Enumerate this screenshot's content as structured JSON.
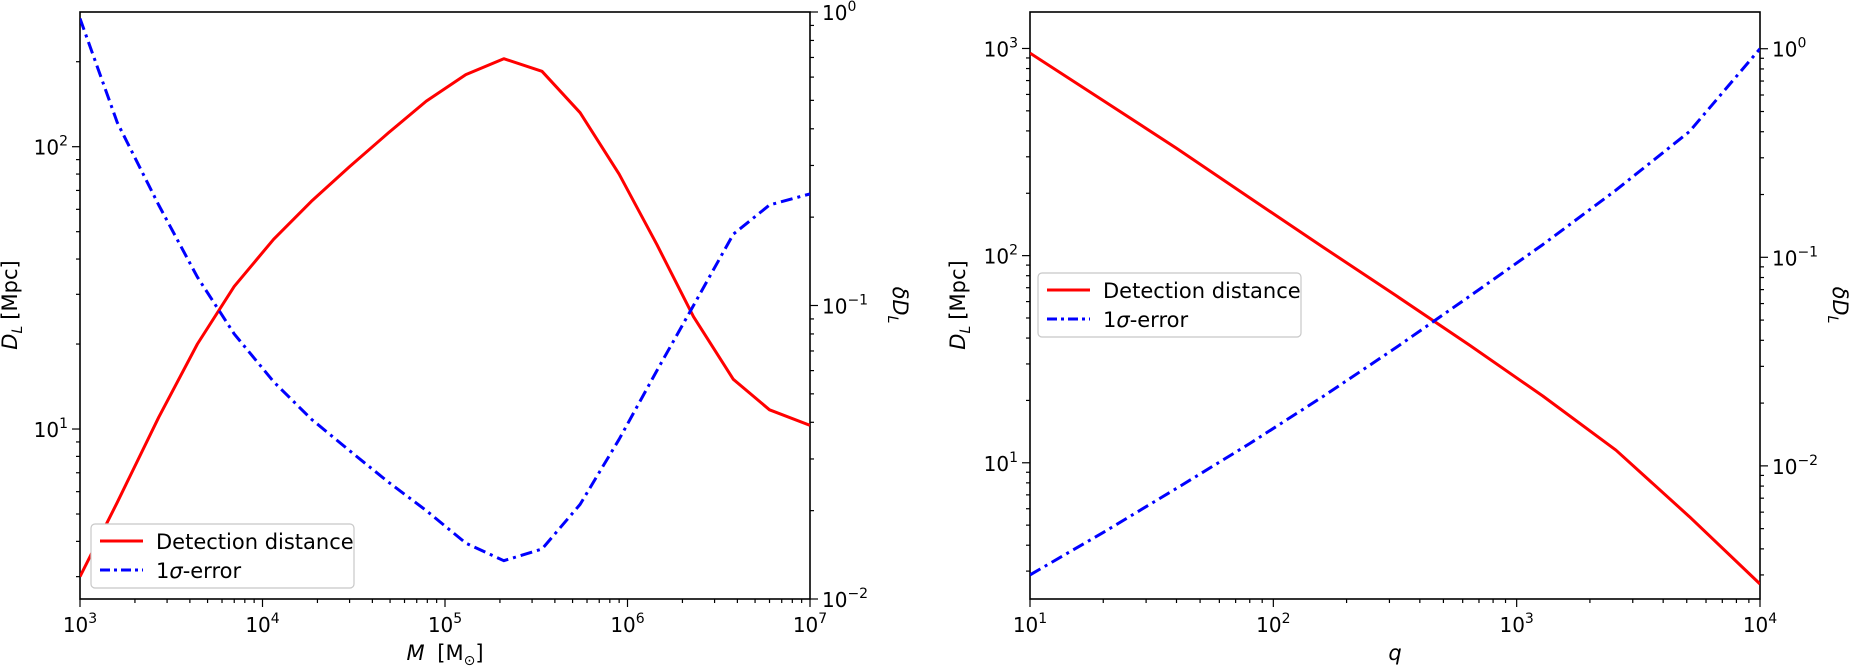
{
  "chart_data": [
    {
      "type": "line",
      "xlabel": "M [M⊙]",
      "ylabel_left": "D_L [Mpc]",
      "ylabel_right": "δD_L",
      "xscale": "log",
      "yscale_left": "log",
      "yscale_right": "log",
      "xlim": [
        1000,
        10000000
      ],
      "ylim_left": [
        2.5,
        300
      ],
      "ylim_right": [
        0.01,
        1
      ],
      "x_tick_labels": [
        "10^3",
        "10^4",
        "10^5",
        "10^6",
        "10^7"
      ],
      "y_left_tick_labels": [
        "10^1",
        "10^2"
      ],
      "y_right_tick_labels": [
        "10^-2",
        "10^-1",
        "10^0"
      ],
      "legend": "lower-left",
      "series": [
        {
          "name": "Detection distance",
          "axis": "left",
          "color": "#ff0000",
          "style": "solid",
          "x": [
            1000,
            1600,
            2700,
            4400,
            7000,
            11500,
            18500,
            30000,
            49000,
            79000,
            130000,
            210000,
            340000,
            550000,
            900000,
            1450000,
            2300000,
            3800000,
            6000000,
            10000000
          ],
          "y": [
            3,
            5.5,
            11,
            20,
            32,
            47,
            64,
            85,
            112,
            145,
            180,
            205,
            185,
            132,
            80,
            45,
            25,
            15,
            11.7,
            10.3
          ]
        },
        {
          "name": "1σ-error",
          "axis": "right",
          "color": "#0000ff",
          "style": "dashdot",
          "x": [
            1000,
            1600,
            2700,
            4400,
            7000,
            11500,
            18500,
            30000,
            49000,
            79000,
            130000,
            210000,
            340000,
            550000,
            900000,
            1450000,
            2300000,
            3800000,
            6000000,
            10000000
          ],
          "y": [
            0.95,
            0.42,
            0.22,
            0.125,
            0.08,
            0.055,
            0.041,
            0.032,
            0.025,
            0.02,
            0.0155,
            0.0135,
            0.0148,
            0.021,
            0.035,
            0.06,
            0.1,
            0.175,
            0.22,
            0.24
          ]
        }
      ]
    },
    {
      "type": "line",
      "xlabel": "q",
      "ylabel_left": "D_L [Mpc]",
      "ylabel_right": "δD_L",
      "xscale": "log",
      "yscale_left": "log",
      "yscale_right": "log",
      "xlim": [
        10,
        10000
      ],
      "ylim_left": [
        2.2,
        1500
      ],
      "ylim_right": [
        0.0023,
        1.5
      ],
      "x_tick_labels": [
        "10^1",
        "10^2",
        "10^3",
        "10^4"
      ],
      "y_left_tick_labels": [
        "10^1",
        "10^2",
        "10^3"
      ],
      "y_right_tick_labels": [
        "10^-2",
        "10^-1",
        "10^0"
      ],
      "legend": "center-left",
      "series": [
        {
          "name": "Detection distance",
          "axis": "left",
          "color": "#ff0000",
          "style": "solid",
          "x": [
            10,
            20,
            40,
            80,
            160,
            320,
            640,
            1280,
            2560,
            5120,
            10000
          ],
          "y": [
            950,
            560,
            330,
            190,
            110,
            64,
            37,
            21,
            11.5,
            5.5,
            2.6
          ]
        },
        {
          "name": "1σ-error",
          "axis": "right",
          "color": "#0000ff",
          "style": "dashdot",
          "x": [
            10,
            20,
            40,
            80,
            160,
            320,
            640,
            1280,
            2560,
            5120,
            10000
          ],
          "y": [
            0.003,
            0.0048,
            0.0078,
            0.0128,
            0.0215,
            0.037,
            0.065,
            0.115,
            0.21,
            0.4,
            1.0
          ]
        }
      ]
    }
  ],
  "legend_labels": {
    "detection": "Detection distance",
    "error_prefix": "1",
    "error_sigma": "σ",
    "error_suffix": "-error"
  },
  "axis_text": {
    "left_chart_xlabel_var": "M",
    "left_chart_xlabel_unit": "[M",
    "sun_symbol": "⊙",
    "close_bracket": "]",
    "dl_var": "D",
    "dl_sub": "L",
    "dl_unit": "[Mpc]",
    "delta": "δD",
    "delta_sub": "L",
    "q_var": "q"
  }
}
